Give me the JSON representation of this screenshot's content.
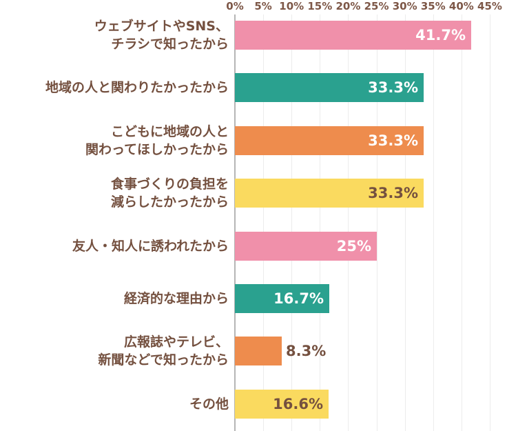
{
  "chart_data": {
    "type": "bar",
    "orientation": "horizontal",
    "title": "",
    "xlabel": "",
    "ylabel": "",
    "categories": [
      "ウェブサイトやSNS、\nチラシで知ったから",
      "地域の人と関わりたかったから",
      "こどもに地域の人と\n関わってほしかったから",
      "食事づくりの負担を\n減らしたかったから",
      "友人・知人に誘われたから",
      "経済的な理由から",
      "広報誌やテレビ、\n新聞などで知ったから",
      "その他"
    ],
    "values": [
      41.7,
      33.3,
      33.3,
      33.3,
      25,
      16.7,
      8.3,
      16.6
    ],
    "value_labels": [
      "41.7%",
      "33.3%",
      "33.3%",
      "33.3%",
      "25%",
      "16.7%",
      "8.3%",
      "16.6%"
    ],
    "bar_colors": [
      "#f090aa",
      "#2aa18f",
      "#ee8c4d",
      "#fada5f",
      "#f090aa",
      "#2aa18f",
      "#ee8c4d",
      "#fada5f"
    ],
    "value_label_colors": [
      "#ffffff",
      "#ffffff",
      "#ffffff",
      "#74503f",
      "#ffffff",
      "#ffffff",
      "#74503f",
      "#74503f"
    ],
    "value_label_positions": [
      "inside",
      "inside",
      "inside",
      "inside",
      "inside",
      "inside",
      "outside",
      "inside"
    ],
    "x_ticks": [
      "0%",
      "5%",
      "10%",
      "15%",
      "20%",
      "25%",
      "30%",
      "35%",
      "40%",
      "45%"
    ],
    "xlim": [
      0,
      45
    ],
    "grid": true,
    "legend": "none",
    "category_text_color": "#74503f",
    "tick_text_color": "#7d5747",
    "gridline_color": "#ececec",
    "axis_line_color": "#b5b5b5",
    "background_color": "#ffffff"
  }
}
